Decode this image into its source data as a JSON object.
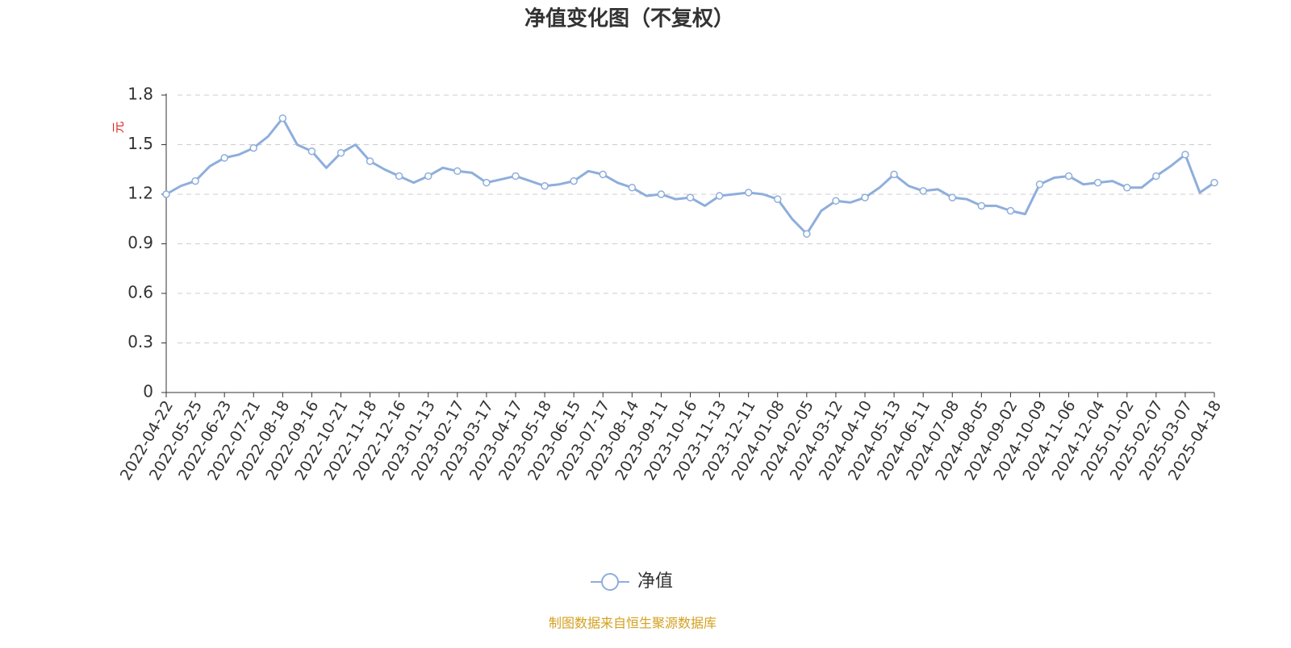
{
  "chart_data": {
    "type": "line",
    "title": "净值变化图（不复权）",
    "y_label": "元",
    "source": "制图数据来自恒生聚源数据库",
    "categories": [
      "2022-04-22",
      null,
      "2022-05-25",
      null,
      "2022-06-23",
      null,
      "2022-07-21",
      null,
      "2022-08-18",
      null,
      "2022-09-16",
      null,
      "2022-10-21",
      null,
      "2022-11-18",
      null,
      "2022-12-16",
      null,
      "2023-01-13",
      null,
      "2023-02-17",
      null,
      "2023-03-17",
      null,
      "2023-04-17",
      null,
      "2023-05-18",
      null,
      "2023-06-15",
      null,
      "2023-07-17",
      null,
      "2023-08-14",
      null,
      "2023-09-11",
      null,
      "2023-10-16",
      null,
      "2023-11-13",
      null,
      "2023-12-11",
      null,
      "2024-01-08",
      null,
      "2024-02-05",
      null,
      "2024-03-12",
      null,
      "2024-04-10",
      null,
      "2024-05-13",
      null,
      "2024-06-11",
      null,
      "2024-07-08",
      null,
      "2024-08-05",
      null,
      "2024-09-02",
      null,
      "2024-10-09",
      null,
      "2024-11-06",
      null,
      "2024-12-04",
      null,
      "2025-01-02",
      null,
      "2025-02-07",
      null,
      "2025-03-07",
      null,
      "2025-04-18"
    ],
    "series": [
      {
        "name": "净值",
        "color": "#8eaedc",
        "values": [
          1.2,
          1.25,
          1.28,
          1.37,
          1.42,
          1.44,
          1.48,
          1.55,
          1.66,
          1.5,
          1.46,
          1.36,
          1.45,
          1.5,
          1.4,
          1.35,
          1.31,
          1.27,
          1.31,
          1.36,
          1.34,
          1.33,
          1.27,
          1.29,
          1.31,
          1.28,
          1.25,
          1.26,
          1.28,
          1.34,
          1.32,
          1.27,
          1.24,
          1.19,
          1.2,
          1.17,
          1.18,
          1.13,
          1.19,
          1.2,
          1.21,
          1.2,
          1.17,
          1.05,
          0.96,
          1.1,
          1.16,
          1.15,
          1.18,
          1.24,
          1.32,
          1.25,
          1.22,
          1.23,
          1.18,
          1.17,
          1.13,
          1.13,
          1.1,
          1.08,
          1.26,
          1.3,
          1.31,
          1.26,
          1.27,
          1.28,
          1.24,
          1.24,
          1.31,
          1.37,
          1.44,
          1.21,
          1.27
        ]
      }
    ],
    "ylim": [
      0,
      1.8
    ],
    "yticks": [
      0,
      0.3,
      0.6,
      0.9,
      1.2,
      1.5,
      1.8
    ],
    "grid": true
  }
}
